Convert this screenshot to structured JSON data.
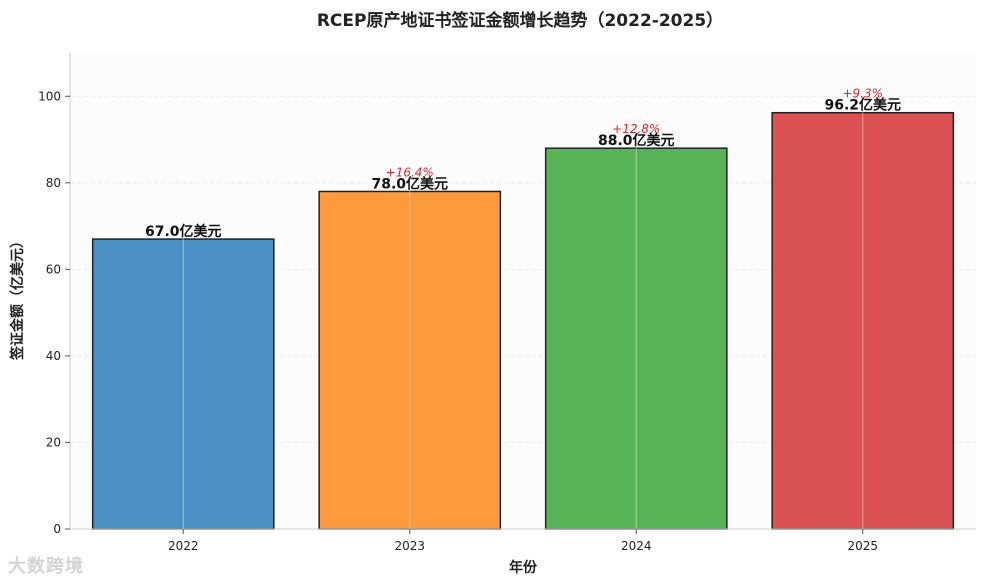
{
  "chart_data": {
    "type": "bar",
    "title": "RCEP原产地证书签证金额增长趋势（2022-2025）",
    "xlabel": "年份",
    "ylabel": "签证金额（亿美元）",
    "categories": [
      "2022",
      "2023",
      "2024",
      "2025"
    ],
    "values": [
      67.0,
      78.0,
      88.0,
      96.2
    ],
    "value_labels": [
      "67.0亿美元",
      "78.0亿美元",
      "88.0亿美元",
      "96.2亿美元"
    ],
    "growth_labels": [
      "",
      "+16.4%",
      "+12.8%",
      "+9.3%"
    ],
    "colors": [
      "#4a90c4",
      "#fd9a3e",
      "#56b456",
      "#dc5152"
    ],
    "growth_color": "#d62728",
    "yticks": [
      0,
      20,
      40,
      60,
      80,
      100
    ],
    "ylim": [
      0,
      110
    ],
    "grid": true
  },
  "watermark": "大数跨境"
}
